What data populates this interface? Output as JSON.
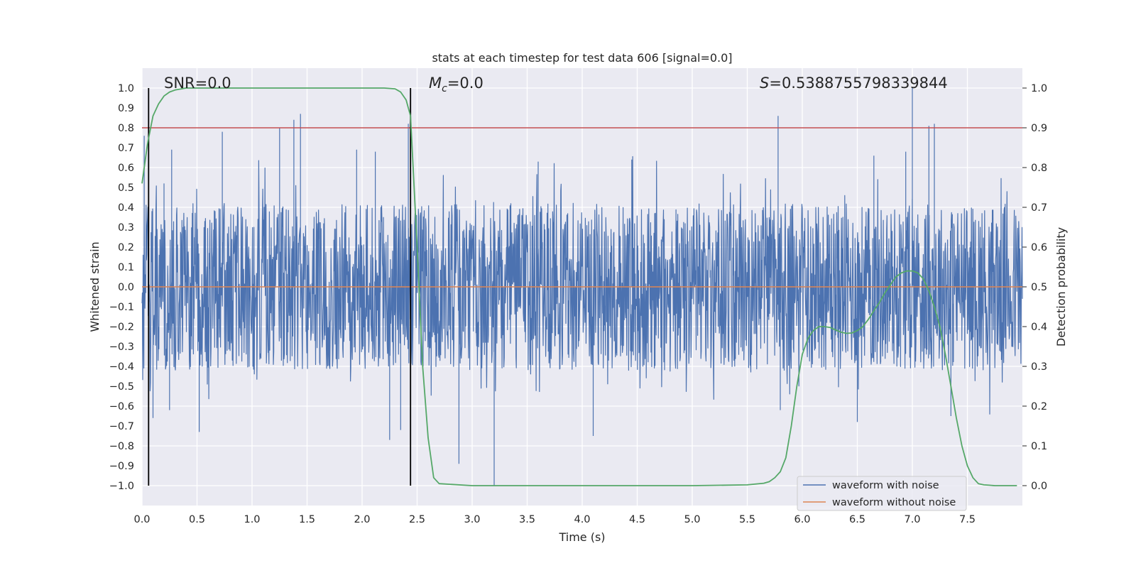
{
  "chart_data": {
    "type": "line",
    "title": "stats at each timestep for test data 606 [signal=0.0]",
    "xlabel": "Time (s)",
    "ylabel_left": "Whitened strain",
    "ylabel_right": "Detection probability",
    "xlim": [
      0.0,
      8.0
    ],
    "ylim_left": [
      -1.1,
      1.1
    ],
    "ylim_right": [
      -0.05,
      1.05
    ],
    "x_ticks": [
      "0.0",
      "0.5",
      "1.0",
      "1.5",
      "2.0",
      "2.5",
      "3.0",
      "3.5",
      "4.0",
      "4.5",
      "5.0",
      "5.5",
      "6.0",
      "6.5",
      "7.0",
      "7.5"
    ],
    "y_left_ticks": [
      "1.0",
      "0.9",
      "0.8",
      "0.7",
      "0.6",
      "0.5",
      "0.4",
      "0.3",
      "0.2",
      "0.1",
      "0.0",
      "−0.1",
      "−0.2",
      "−0.3",
      "−0.4",
      "−0.5",
      "−0.6",
      "−0.7",
      "−0.8",
      "−0.9",
      "−1.0"
    ],
    "y_right_ticks": [
      "1.0",
      "0.9",
      "0.8",
      "0.7",
      "0.6",
      "0.5",
      "0.4",
      "0.3",
      "0.2",
      "0.1",
      "0.0"
    ],
    "grid": true,
    "legend_position": "lower-right",
    "annotations": {
      "snr": "SNR=0.0",
      "mc_symbol": "M",
      "mc_sub": "c",
      "mc_value": "=0.0",
      "s_symbol": "S",
      "s_value": "=0.5388755798339844"
    },
    "threshold": {
      "y_right": 0.9,
      "color": "#c44e52"
    },
    "vertical_lines_x": [
      0.06,
      2.44
    ],
    "series": [
      {
        "name": "waveform with noise",
        "color": "#4c72b0",
        "axis": "left",
        "envelope": {
          "typical_abs": 0.42,
          "max": 1.0,
          "min": -1.0
        },
        "peaks": [
          [
            0.02,
            0.76
          ],
          [
            0.2,
            0.52
          ],
          [
            0.27,
            0.69
          ],
          [
            0.73,
            0.78
          ],
          [
            1.25,
            0.8
          ],
          [
            1.38,
            0.84
          ],
          [
            1.44,
            0.87
          ],
          [
            1.95,
            0.69
          ],
          [
            2.12,
            0.68
          ],
          [
            2.42,
            0.82
          ],
          [
            3.6,
            0.63
          ],
          [
            4.45,
            0.64
          ],
          [
            5.78,
            0.86
          ],
          [
            6.65,
            0.66
          ],
          [
            6.94,
            0.68
          ],
          [
            7.0,
            1.0
          ],
          [
            7.15,
            0.81
          ],
          [
            7.2,
            0.82
          ]
        ],
        "troughs": [
          [
            0.1,
            -0.66
          ],
          [
            0.52,
            -0.73
          ],
          [
            0.25,
            -0.62
          ],
          [
            2.25,
            -0.77
          ],
          [
            2.35,
            -0.72
          ],
          [
            2.88,
            -0.89
          ],
          [
            3.2,
            -1.0
          ],
          [
            4.1,
            -0.75
          ],
          [
            5.8,
            -0.62
          ],
          [
            6.5,
            -0.68
          ],
          [
            7.35,
            -0.65
          ]
        ]
      },
      {
        "name": "waveform without noise",
        "color": "#dd8452",
        "axis": "left",
        "x": [
          0.0,
          8.0
        ],
        "values": [
          0.0,
          0.0
        ]
      },
      {
        "name": "detection probability",
        "color": "#55a868",
        "axis": "right",
        "x": [
          0.0,
          0.05,
          0.1,
          0.15,
          0.2,
          0.25,
          0.3,
          0.4,
          0.6,
          1.0,
          1.5,
          2.0,
          2.2,
          2.3,
          2.35,
          2.4,
          2.44,
          2.5,
          2.55,
          2.6,
          2.65,
          2.7,
          3.0,
          4.0,
          5.0,
          5.5,
          5.65,
          5.7,
          5.75,
          5.8,
          5.85,
          5.9,
          5.95,
          6.0,
          6.05,
          6.1,
          6.15,
          6.2,
          6.25,
          6.3,
          6.35,
          6.4,
          6.45,
          6.5,
          6.55,
          6.6,
          6.65,
          6.7,
          6.75,
          6.8,
          6.85,
          6.9,
          6.95,
          7.0,
          7.05,
          7.1,
          7.15,
          7.2,
          7.25,
          7.3,
          7.35,
          7.4,
          7.45,
          7.5,
          7.55,
          7.6,
          7.65,
          7.7,
          7.75,
          7.8,
          7.85,
          7.95
        ],
        "values": [
          0.76,
          0.86,
          0.93,
          0.96,
          0.98,
          0.99,
          0.995,
          1.0,
          1.0,
          1.0,
          1.0,
          1.0,
          1.0,
          0.998,
          0.99,
          0.97,
          0.93,
          0.6,
          0.3,
          0.12,
          0.02,
          0.005,
          0.0,
          0.0,
          0.0,
          0.002,
          0.006,
          0.01,
          0.02,
          0.035,
          0.07,
          0.15,
          0.25,
          0.33,
          0.37,
          0.39,
          0.4,
          0.4,
          0.398,
          0.392,
          0.386,
          0.383,
          0.384,
          0.39,
          0.4,
          0.418,
          0.44,
          0.46,
          0.485,
          0.505,
          0.525,
          0.535,
          0.54,
          0.54,
          0.535,
          0.52,
          0.49,
          0.45,
          0.4,
          0.33,
          0.25,
          0.17,
          0.1,
          0.05,
          0.02,
          0.005,
          0.002,
          0.001,
          0.0,
          0.0,
          0.0,
          0.0
        ]
      }
    ]
  }
}
